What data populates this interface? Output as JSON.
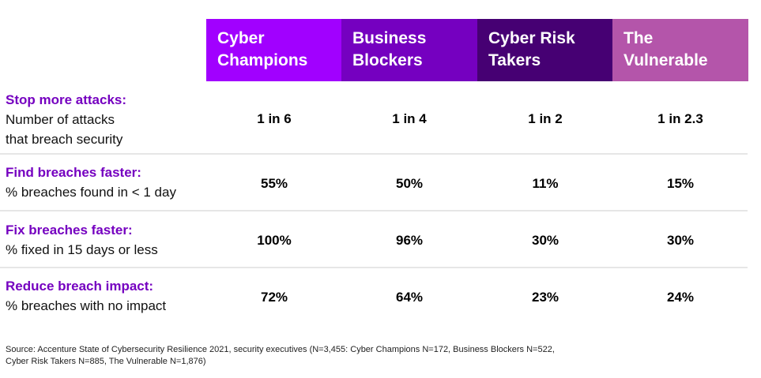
{
  "columns": [
    {
      "line1": "Cyber",
      "line2": "Champions",
      "color": "#a100ff"
    },
    {
      "line1": "Business",
      "line2": "Blockers",
      "color": "#7500c0"
    },
    {
      "line1": "Cyber Risk",
      "line2": "Takers",
      "color": "#460073"
    },
    {
      "line1": "The",
      "line2": "Vulnerable",
      "color": "#b455aa"
    }
  ],
  "rows": [
    {
      "title": "Stop more attacks:",
      "desc1": "Number of attacks",
      "desc2": "that breach security",
      "values": [
        "1 in 6",
        "1 in 4",
        "1 in 2",
        "1 in 2.3"
      ]
    },
    {
      "title": "Find breaches faster:",
      "desc1": "% breaches found in < 1 day",
      "values": [
        "55%",
        "50%",
        "11%",
        "15%"
      ]
    },
    {
      "title": "Fix breaches faster:",
      "desc1": "% fixed in 15 days or less",
      "values": [
        "100%",
        "96%",
        "30%",
        "30%"
      ]
    },
    {
      "title": "Reduce breach impact:",
      "desc1": "% breaches with no impact",
      "values": [
        "72%",
        "64%",
        "23%",
        "24%"
      ]
    }
  ],
  "source": {
    "line1": "Source: Accenture State of Cybersecurity Resilience 2021, security executives (N=3,455: Cyber Champions N=172, Business Blockers N=522,",
    "line2": "Cyber Risk Takers N=885, The Vulnerable N=1,876)"
  }
}
